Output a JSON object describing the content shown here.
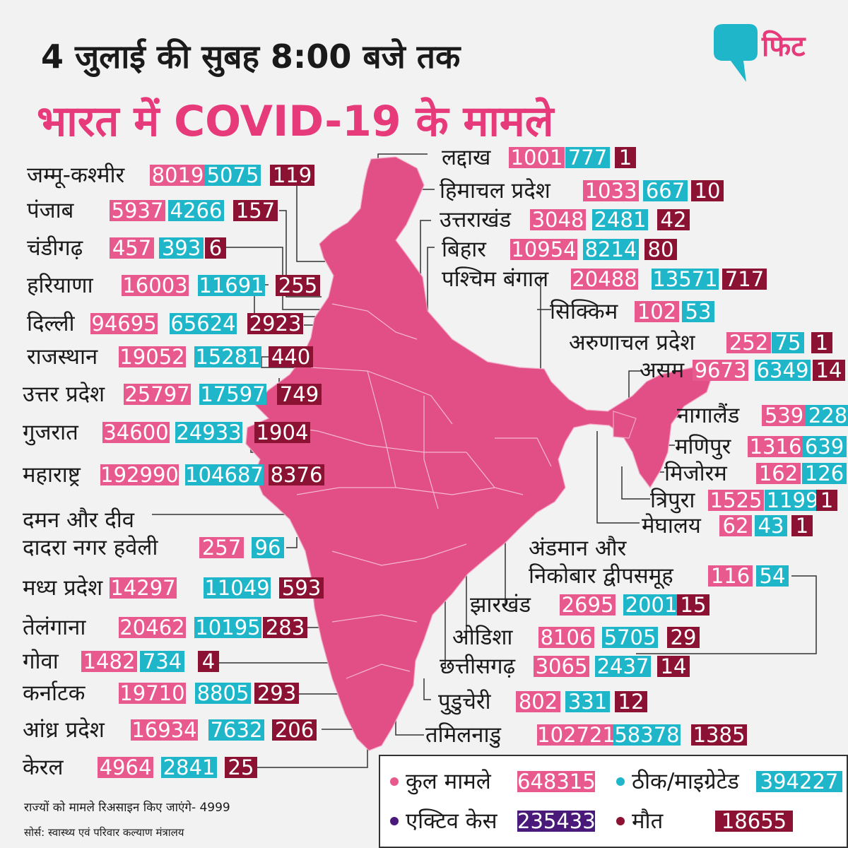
{
  "title_line1": "4 जुलाई की सुबह 8:00 बजे तक",
  "title_line2": "भारत में COVID-19 के मामले",
  "logo_text": "फिट",
  "colors": {
    "confirmed": "#e85a8d",
    "recovered": "#1fb6c9",
    "deaths": "#8c1233",
    "active": "#4a1a7a",
    "map_fill": "#e14f86",
    "accent": "#e63a7a"
  },
  "states_left": [
    {
      "name": "जम्मू-कश्मीर",
      "confirmed": "8019",
      "recovered": "5075",
      "deaths": "119"
    },
    {
      "name": "पंजाब",
      "confirmed": "5937",
      "recovered": "4266",
      "deaths": "157"
    },
    {
      "name": "चंडीगढ़",
      "confirmed": "457",
      "recovered": "393",
      "deaths": "6"
    },
    {
      "name": "हरियाणा",
      "confirmed": "16003",
      "recovered": "11691",
      "deaths": "255"
    },
    {
      "name": "दिल्ली",
      "confirmed": "94695",
      "recovered": "65624",
      "deaths": "2923"
    },
    {
      "name": "राजस्थान",
      "confirmed": "19052",
      "recovered": "15281",
      "deaths": "440"
    },
    {
      "name": "उत्तर प्रदेश",
      "confirmed": "25797",
      "recovered": "17597",
      "deaths": "749"
    },
    {
      "name": "गुजरात",
      "confirmed": "34600",
      "recovered": "24933",
      "deaths": "1904"
    },
    {
      "name": "महाराष्ट्र",
      "confirmed": "192990",
      "recovered": "104687",
      "deaths": "8376"
    },
    {
      "name": "दमन और दीव",
      "confirmed": "",
      "recovered": "",
      "deaths": ""
    },
    {
      "name": "दादरा नगर हवेली",
      "confirmed": "257",
      "recovered": "96",
      "deaths": ""
    },
    {
      "name": "मध्य प्रदेश",
      "confirmed": "14297",
      "recovered": "11049",
      "deaths": "593"
    },
    {
      "name": "तेलंगाना",
      "confirmed": "20462",
      "recovered": "10195",
      "deaths": "283"
    },
    {
      "name": "गोवा",
      "confirmed": "1482",
      "recovered": "734",
      "deaths": "4"
    },
    {
      "name": "कर्नाटक",
      "confirmed": "19710",
      "recovered": "8805",
      "deaths": "293"
    },
    {
      "name": "आंध्र प्रदेश",
      "confirmed": "16934",
      "recovered": "7632",
      "deaths": "206"
    },
    {
      "name": "केरल",
      "confirmed": "4964",
      "recovered": "2841",
      "deaths": "25"
    }
  ],
  "states_right": [
    {
      "name": "लद्दाख",
      "confirmed": "1001",
      "recovered": "777",
      "deaths": "1"
    },
    {
      "name": "हिमाचल प्रदेश",
      "confirmed": "1033",
      "recovered": "667",
      "deaths": "10"
    },
    {
      "name": "उत्तराखंड",
      "confirmed": "3048",
      "recovered": "2481",
      "deaths": "42"
    },
    {
      "name": "बिहार",
      "confirmed": "10954",
      "recovered": "8214",
      "deaths": "80"
    },
    {
      "name": "पश्चिम बंगाल",
      "confirmed": "20488",
      "recovered": "13571",
      "deaths": "717"
    },
    {
      "name": "सिक्किम",
      "confirmed": "102",
      "recovered": "53",
      "deaths": ""
    },
    {
      "name": "अरुणाचल प्रदेश",
      "confirmed": "252",
      "recovered": "75",
      "deaths": "1"
    },
    {
      "name": "असम",
      "confirmed": "9673",
      "recovered": "6349",
      "deaths": "14"
    },
    {
      "name": "नागालैंड",
      "confirmed": "539",
      "recovered": "228",
      "deaths": ""
    },
    {
      "name": "मणिपुर",
      "confirmed": "1316",
      "recovered": "639",
      "deaths": ""
    },
    {
      "name": "मिजोरम",
      "confirmed": "162",
      "recovered": "126",
      "deaths": ""
    },
    {
      "name": "त्रिपुरा",
      "confirmed": "1525",
      "recovered": "1199",
      "deaths": "1"
    },
    {
      "name": "मेघालय",
      "confirmed": "62",
      "recovered": "43",
      "deaths": "1"
    },
    {
      "name": "अंडमान और",
      "confirmed": "",
      "recovered": "",
      "deaths": ""
    },
    {
      "name": "निकोबार द्वीपसमूह",
      "confirmed": "116",
      "recovered": "54",
      "deaths": ""
    },
    {
      "name": "झारखंड",
      "confirmed": "2695",
      "recovered": "2001",
      "deaths": "15"
    },
    {
      "name": "ओडिशा",
      "confirmed": "8106",
      "recovered": "5705",
      "deaths": "29"
    },
    {
      "name": "छत्तीसगढ़",
      "confirmed": "3065",
      "recovered": "2437",
      "deaths": "14"
    },
    {
      "name": "पुडुचेरी",
      "confirmed": "802",
      "recovered": "331",
      "deaths": "12"
    },
    {
      "name": "तमिलनाडु",
      "confirmed": "102721",
      "recovered": "58378",
      "deaths": "1385"
    }
  ],
  "legend": {
    "confirmed_label": "कुल मामले",
    "confirmed_value": "648315",
    "recovered_label": "ठीक/माइग्रेटेड",
    "recovered_value": "394227",
    "active_label": "एक्टिव केस",
    "active_value": "235433",
    "deaths_label": "मौत",
    "deaths_value": "18655"
  },
  "footnote": "राज्यों को मामले रिअसाइन किए जाएंगे- 4999",
  "source": "सोर्स: स्वास्थ्य एवं परिवार कल्याण मंत्रालय"
}
